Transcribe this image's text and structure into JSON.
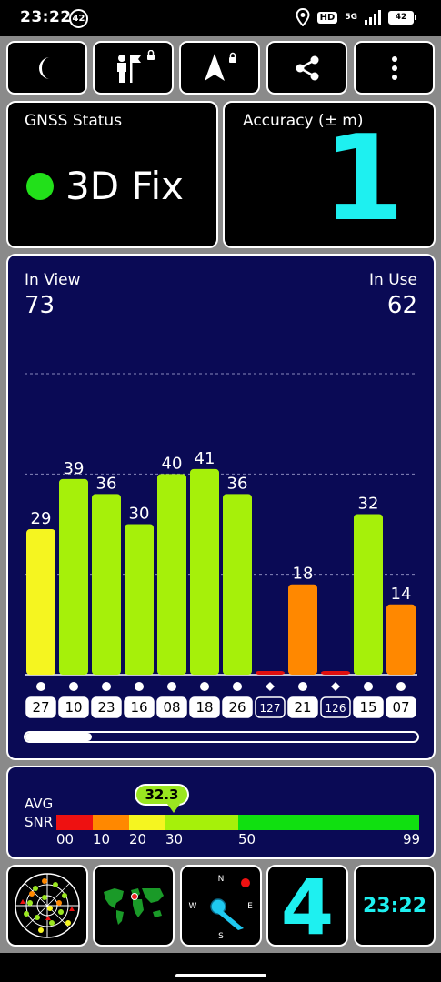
{
  "status_bar": {
    "time": "23:22",
    "notif_badge": "42",
    "hd_label": "HD",
    "network_label": "5G",
    "battery": "42"
  },
  "toolbar": {
    "buttons": [
      {
        "icon": "moon-icon"
      },
      {
        "icon": "person-flag-icon"
      },
      {
        "icon": "navigation-arrow-icon"
      },
      {
        "icon": "share-icon"
      },
      {
        "icon": "more-vert-icon"
      }
    ]
  },
  "gnss_status": {
    "label": "GNSS Status",
    "fix": "3D Fix",
    "fix_color": "#22e01a"
  },
  "accuracy": {
    "label": "Accuracy (± m)",
    "value": "1",
    "value_color": "#1ef0f0"
  },
  "satellites": {
    "in_view_label": "In View",
    "in_view": "73",
    "in_use_label": "In Use",
    "in_use": "62",
    "page_scroll_fraction": 0.17
  },
  "chart_data": {
    "type": "bar",
    "categories": [
      "27",
      "10",
      "23",
      "16",
      "08",
      "18",
      "26",
      "127",
      "21",
      "126",
      "15",
      "07"
    ],
    "values": [
      29,
      39,
      36,
      30,
      40,
      41,
      36,
      0,
      18,
      0,
      32,
      14
    ],
    "value_labels": [
      "29",
      "39",
      "36",
      "30",
      "40",
      "41",
      "36",
      "",
      "18",
      "",
      "32",
      "14"
    ],
    "markers": [
      "circle",
      "circle",
      "circle",
      "circle",
      "circle",
      "circle",
      "circle",
      "diamond",
      "circle",
      "diamond",
      "circle",
      "circle"
    ],
    "outlined_ids": [
      "127",
      "126"
    ],
    "colors": [
      "#f5f520",
      "#a6f00a",
      "#a6f00a",
      "#a6f00a",
      "#a6f00a",
      "#a6f00a",
      "#a6f00a",
      "#e01010",
      "#ff8800",
      "#e01010",
      "#a6f00a",
      "#ff8800"
    ],
    "ylim": [
      0,
      60
    ],
    "gridlines": [
      20,
      40,
      60
    ]
  },
  "snr": {
    "avg_label": "AVG",
    "snr_label": "SNR",
    "avg_value": "32.3",
    "scale": [
      {
        "label": "00",
        "from": 0,
        "to": 10,
        "color": "#ee1111"
      },
      {
        "label": "10",
        "from": 10,
        "to": 20,
        "color": "#ff8800"
      },
      {
        "label": "20",
        "from": 20,
        "to": 30,
        "color": "#f5f520"
      },
      {
        "label": "30",
        "from": 30,
        "to": 50,
        "color": "#a6f00a"
      },
      {
        "label": "50",
        "from": 50,
        "to": 99,
        "color": "#10e010"
      }
    ],
    "max_label": "99"
  },
  "bottom_widgets": {
    "compass_n": "N",
    "compass_e": "E",
    "compass_s": "S",
    "compass_w": "W",
    "satellite_count": "4",
    "time": "23:22"
  }
}
